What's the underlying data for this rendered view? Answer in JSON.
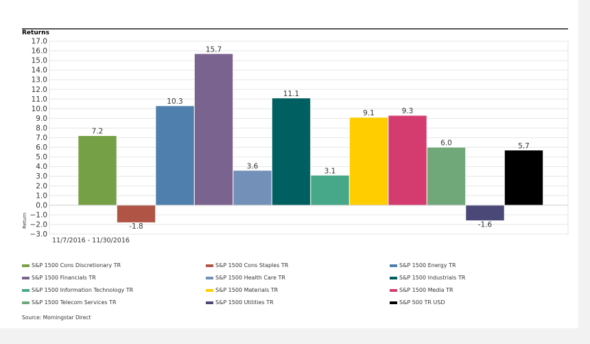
{
  "chart_data": {
    "type": "bar",
    "title": "Returns",
    "ylabel": "Return",
    "xlabel": "11/7/2016 - 11/30/2016",
    "ylim": [
      -3.0,
      17.0
    ],
    "ytick_step": 1.0,
    "grid": true,
    "legend": "bottom",
    "series": [
      {
        "name": "S&P 1500 Cons Discretionary TR",
        "value": 7.2,
        "label": "7.2",
        "color": "#76a046"
      },
      {
        "name": "S&P 1500 Cons Staples TR",
        "value": -1.8,
        "label": "-1.8",
        "color": "#b05545"
      },
      {
        "name": "S&P 1500 Energy TR",
        "value": 10.3,
        "label": "10.3",
        "color": "#4f80ad"
      },
      {
        "name": "S&P 1500 Financials TR",
        "value": 15.7,
        "label": "15.7",
        "color": "#7b638f"
      },
      {
        "name": "S&P 1500 Health Care TR",
        "value": 3.6,
        "label": "3.6",
        "color": "#7390b8"
      },
      {
        "name": "S&P 1500 Industrials TR",
        "value": 11.1,
        "label": "11.1",
        "color": "#005f60"
      },
      {
        "name": "S&P 1500 Information Technology TR",
        "value": 3.1,
        "label": "3.1",
        "color": "#46a889"
      },
      {
        "name": "S&P 1500 Materials TR",
        "value": 9.1,
        "label": "9.1",
        "color": "#ffcd00"
      },
      {
        "name": "S&P 1500 Media TR",
        "value": 9.3,
        "label": "9.3",
        "color": "#d43c6f"
      },
      {
        "name": "S&P 1500 Telecom Services TR",
        "value": 6.0,
        "label": "6.0",
        "color": "#70a87a"
      },
      {
        "name": "S&P 1500 Utilities TR",
        "value": -1.6,
        "label": "-1.6",
        "color": "#4a4877"
      },
      {
        "name": "S&P 500 TR USD",
        "value": 5.7,
        "label": "5.7",
        "color": "#000000"
      }
    ]
  },
  "source": "Source: Morningstar Direct"
}
